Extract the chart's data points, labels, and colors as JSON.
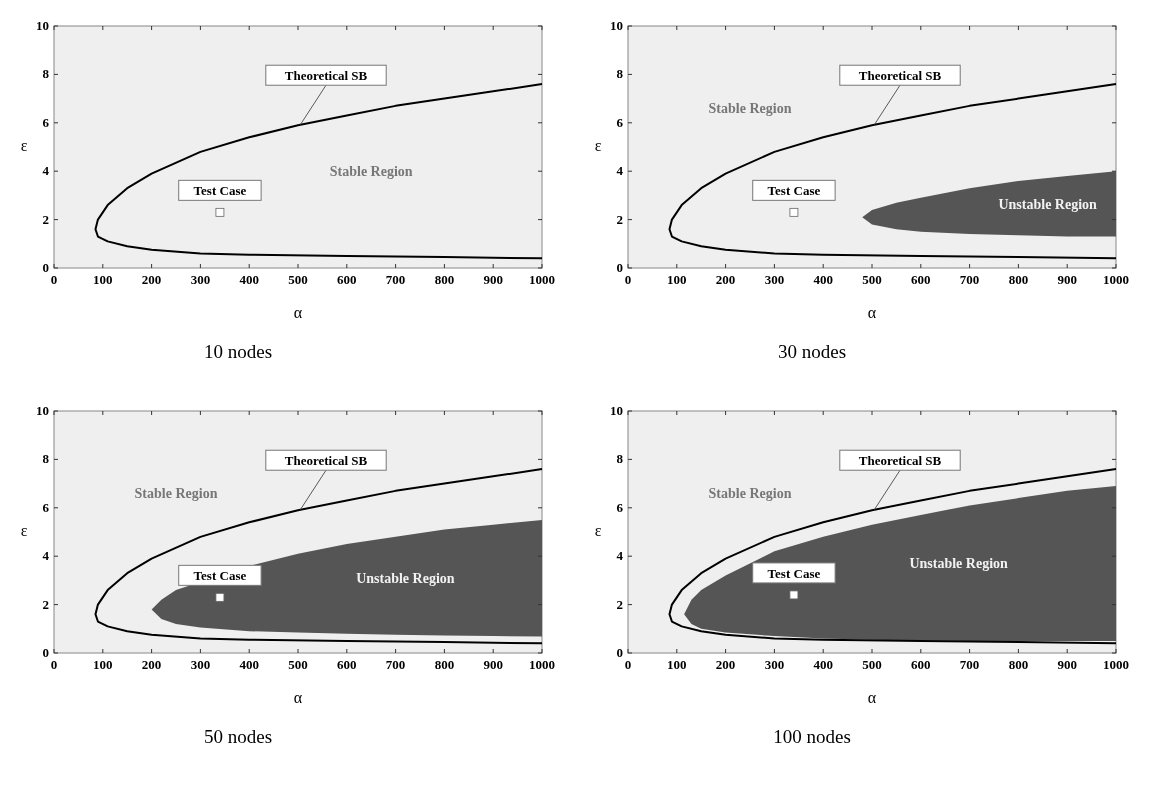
{
  "chart_data": [
    {
      "type": "line",
      "title": "10 nodes",
      "xlabel": "α",
      "ylabel": "ε",
      "xlim": [
        0,
        1000
      ],
      "ylim": [
        0,
        10
      ],
      "xticks": [
        0,
        100,
        200,
        300,
        400,
        500,
        600,
        700,
        800,
        900,
        1000
      ],
      "yticks": [
        0,
        2,
        4,
        6,
        8,
        10
      ],
      "series": [
        {
          "name": "Theoretical SB",
          "color": "#000000",
          "x": [
            1000,
            800,
            600,
            400,
            300,
            200,
            150,
            110,
            90,
            85,
            90,
            110,
            150,
            200,
            300,
            400,
            500,
            600,
            700,
            800,
            900,
            1000
          ],
          "values": [
            0.4,
            0.45,
            0.5,
            0.55,
            0.6,
            0.75,
            0.9,
            1.1,
            1.3,
            1.6,
            2.0,
            2.6,
            3.3,
            3.9,
            4.8,
            5.4,
            5.9,
            6.3,
            6.7,
            7.0,
            7.3,
            7.6
          ]
        },
        {
          "name": "Test Case",
          "type": "scatter",
          "marker": "square",
          "color": "#ffffff",
          "x": [
            340
          ],
          "values": [
            2.3
          ]
        }
      ],
      "annotations": [
        "Stable Region"
      ]
    },
    {
      "type": "line",
      "title": "30 nodes",
      "xlabel": "α",
      "ylabel": "ε",
      "xlim": [
        0,
        1000
      ],
      "ylim": [
        0,
        10
      ],
      "xticks": [
        0,
        100,
        200,
        300,
        400,
        500,
        600,
        700,
        800,
        900,
        1000
      ],
      "yticks": [
        0,
        2,
        4,
        6,
        8,
        10
      ],
      "series": [
        {
          "type": "area",
          "color": "#555555",
          "x": [
            1000,
            900,
            800,
            700,
            600,
            550,
            500,
            480,
            500,
            550,
            600,
            700,
            800,
            900,
            1000
          ],
          "values": [
            1.3,
            1.3,
            1.35,
            1.4,
            1.5,
            1.6,
            1.8,
            2.1,
            2.4,
            2.7,
            2.9,
            3.3,
            3.6,
            3.8,
            4.0
          ]
        },
        {
          "name": "Theoretical SB",
          "color": "#000000",
          "x": [
            1000,
            800,
            600,
            400,
            300,
            200,
            150,
            110,
            90,
            85,
            90,
            110,
            150,
            200,
            300,
            400,
            500,
            600,
            700,
            800,
            900,
            1000
          ],
          "values": [
            0.4,
            0.45,
            0.5,
            0.55,
            0.6,
            0.75,
            0.9,
            1.1,
            1.3,
            1.6,
            2.0,
            2.6,
            3.3,
            3.9,
            4.8,
            5.4,
            5.9,
            6.3,
            6.7,
            7.0,
            7.3,
            7.6
          ]
        },
        {
          "name": "Test Case",
          "type": "scatter",
          "marker": "square",
          "color": "#ffffff",
          "x": [
            340
          ],
          "values": [
            2.3
          ]
        }
      ],
      "annotations": [
        "Stable Region",
        "Unstable Region"
      ]
    },
    {
      "type": "line",
      "title": "50  nodes",
      "xlabel": "α",
      "ylabel": "ε",
      "xlim": [
        0,
        1000
      ],
      "ylim": [
        0,
        10
      ],
      "xticks": [
        0,
        100,
        200,
        300,
        400,
        500,
        600,
        700,
        800,
        900,
        1000
      ],
      "yticks": [
        0,
        2,
        4,
        6,
        8,
        10
      ],
      "series": [
        {
          "type": "area",
          "color": "#555555",
          "x": [
            1000,
            900,
            800,
            700,
            600,
            500,
            400,
            300,
            250,
            220,
            200,
            220,
            250,
            400,
            500,
            600,
            700,
            800,
            900,
            1000
          ],
          "values": [
            0.68,
            0.7,
            0.72,
            0.75,
            0.8,
            0.85,
            0.9,
            1.05,
            1.2,
            1.4,
            1.8,
            2.2,
            2.6,
            3.6,
            4.1,
            4.5,
            4.8,
            5.1,
            5.3,
            5.5
          ]
        },
        {
          "name": "Theoretical SB",
          "color": "#000000",
          "x": [
            1000,
            800,
            600,
            400,
            300,
            200,
            150,
            110,
            90,
            85,
            90,
            110,
            150,
            200,
            300,
            400,
            500,
            600,
            700,
            800,
            900,
            1000
          ],
          "values": [
            0.4,
            0.45,
            0.5,
            0.55,
            0.6,
            0.75,
            0.9,
            1.1,
            1.3,
            1.6,
            2.0,
            2.6,
            3.3,
            3.9,
            4.8,
            5.4,
            5.9,
            6.3,
            6.7,
            7.0,
            7.3,
            7.6
          ]
        },
        {
          "name": "Test Case",
          "type": "scatter",
          "marker": "square",
          "color": "#ffffff",
          "x": [
            340
          ],
          "values": [
            2.3
          ]
        }
      ],
      "annotations": [
        "Stable Region",
        "Unstable Region"
      ]
    },
    {
      "type": "line",
      "title": "100 nodes",
      "xlabel": "α",
      "ylabel": "ε",
      "xlim": [
        0,
        1000
      ],
      "ylim": [
        0,
        10
      ],
      "xticks": [
        0,
        100,
        200,
        300,
        400,
        500,
        600,
        700,
        800,
        900,
        1000
      ],
      "yticks": [
        0,
        2,
        4,
        6,
        8,
        10
      ],
      "series": [
        {
          "type": "area",
          "color": "#555555",
          "x": [
            1000,
            900,
            800,
            700,
            600,
            500,
            400,
            300,
            200,
            150,
            130,
            115,
            130,
            150,
            200,
            300,
            400,
            500,
            600,
            700,
            800,
            900,
            1000
          ],
          "values": [
            0.5,
            0.5,
            0.5,
            0.5,
            0.52,
            0.55,
            0.6,
            0.7,
            0.85,
            1.0,
            1.2,
            1.6,
            2.2,
            2.6,
            3.2,
            4.2,
            4.8,
            5.3,
            5.7,
            6.1,
            6.4,
            6.7,
            6.9
          ]
        },
        {
          "name": "Theoretical SB",
          "color": "#000000",
          "x": [
            1000,
            800,
            600,
            400,
            300,
            200,
            150,
            110,
            90,
            85,
            90,
            110,
            150,
            200,
            300,
            400,
            500,
            600,
            700,
            800,
            900,
            1000
          ],
          "values": [
            0.4,
            0.45,
            0.5,
            0.55,
            0.6,
            0.75,
            0.9,
            1.1,
            1.3,
            1.6,
            2.0,
            2.6,
            3.3,
            3.9,
            4.8,
            5.4,
            5.9,
            6.3,
            6.7,
            7.0,
            7.3,
            7.6
          ]
        },
        {
          "name": "Test Case",
          "type": "scatter",
          "marker": "square",
          "color": "#ffffff",
          "x": [
            340
          ],
          "values": [
            2.4
          ]
        }
      ],
      "annotations": [
        "Stable Region",
        "Unstable Region"
      ]
    }
  ]
}
